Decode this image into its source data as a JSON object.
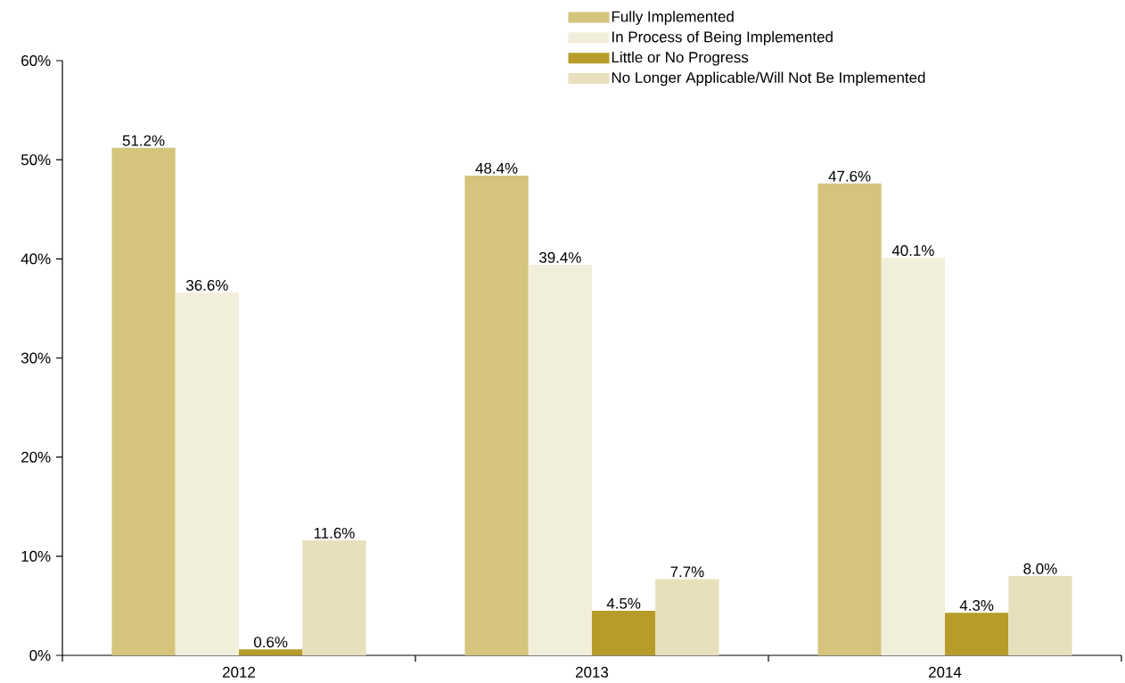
{
  "chart_data": {
    "type": "bar",
    "categories": [
      "2012",
      "2013",
      "2014"
    ],
    "series": [
      {
        "name": "Fully Implemented",
        "color": "#d4c47c",
        "values": [
          51.2,
          48.4,
          47.6
        ],
        "value_labels": [
          "51.2%",
          "48.4%",
          "47.6%"
        ]
      },
      {
        "name": "In Process of Being Implemented",
        "color": "#f2eedc",
        "values": [
          36.6,
          39.4,
          40.1
        ],
        "value_labels": [
          "36.6%",
          "39.4%",
          "40.1%"
        ]
      },
      {
        "name": "Little or No Progress",
        "color": "#b89c2a",
        "values": [
          0.6,
          4.5,
          4.3
        ],
        "value_labels": [
          "0.6%",
          "4.5%",
          "4.3%"
        ]
      },
      {
        "name": "No Longer Applicable/Will Not Be Implemented",
        "color": "#e8e0bc",
        "values": [
          11.6,
          7.7,
          8.0
        ],
        "value_labels": [
          "11.6%",
          "7.7%",
          "8.0%"
        ]
      }
    ],
    "ylim": [
      0,
      60
    ],
    "yticks": [
      {
        "value": 0,
        "label": "0%"
      },
      {
        "value": 10,
        "label": "10%"
      },
      {
        "value": 20,
        "label": "20%"
      },
      {
        "value": 30,
        "label": "30%"
      },
      {
        "value": 40,
        "label": "40%"
      },
      {
        "value": 50,
        "label": "50%"
      },
      {
        "value": 60,
        "label": "60%"
      }
    ],
    "legend": "top",
    "grid": false
  }
}
